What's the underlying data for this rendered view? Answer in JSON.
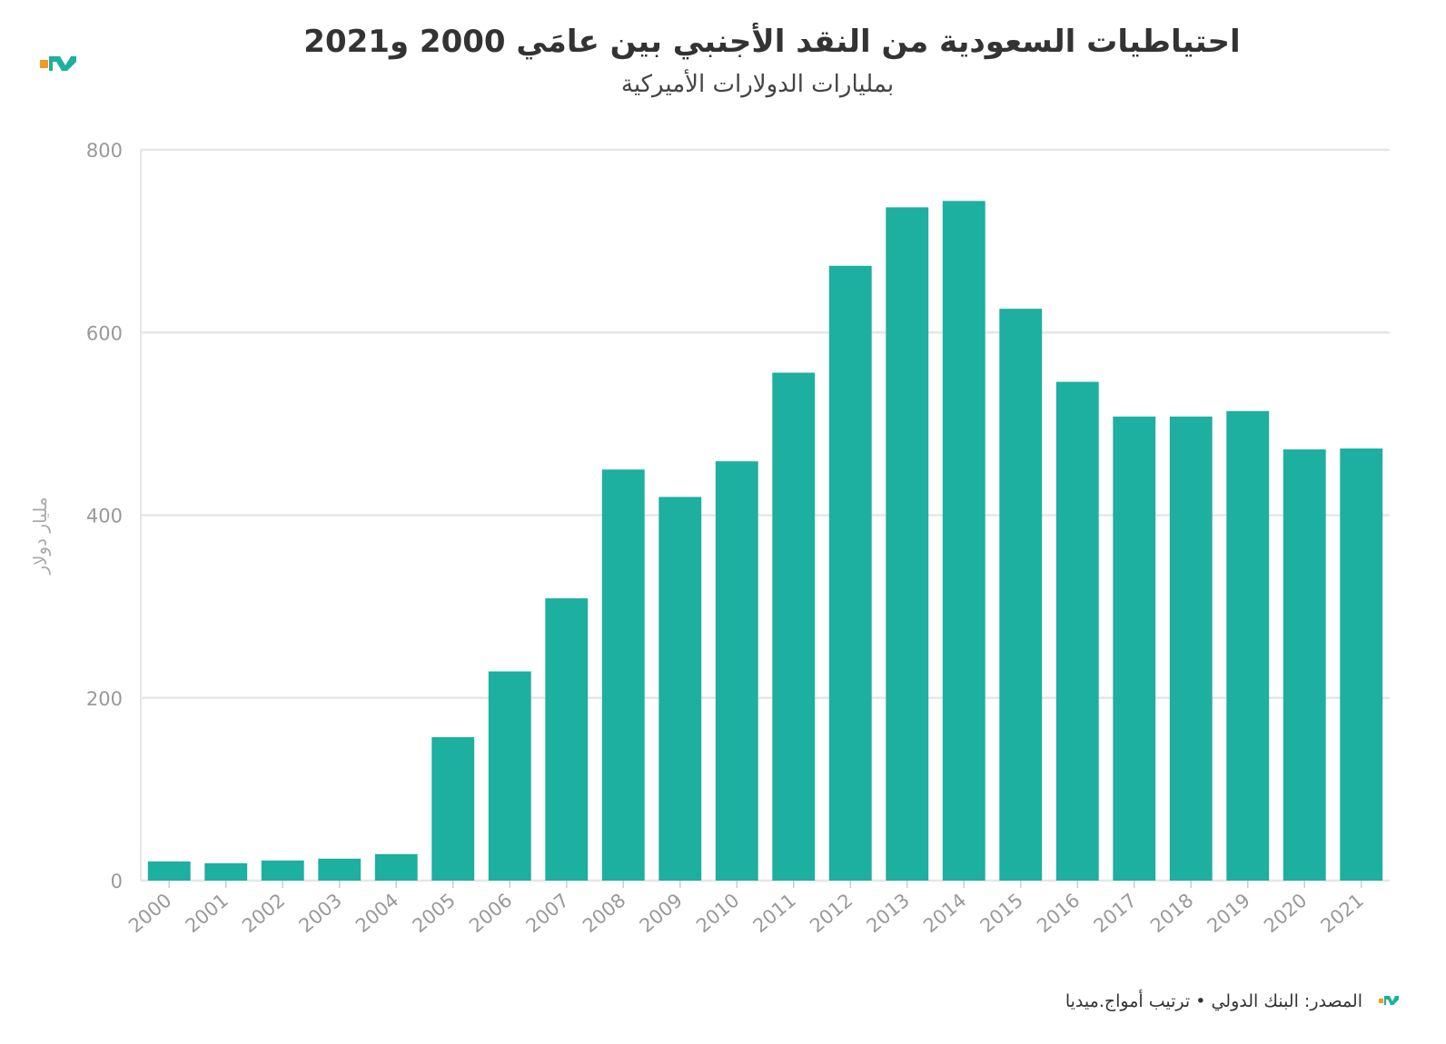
{
  "title": "احتياطيات السعودية من النقد الأجنبي بين عامَي 2000 و2021",
  "subtitle": "بمليارات الدولارات الأميركية",
  "footer": {
    "source": "المصدر: البنك الدولي • ترتيب أمواج.ميديا"
  },
  "colors": {
    "bar": "#1daf9f",
    "logo_orange": "#f39a1f",
    "logo_teal": "#1daf9f",
    "grid": "#e6e6e6",
    "tick_text": "#999999"
  },
  "chart_data": {
    "type": "bar",
    "title": "احتياطيات السعودية من النقد الأجنبي بين عامَي 2000 و2021",
    "subtitle": "بمليارات الدولارات الأميركية",
    "xlabel": "",
    "ylabel": "مليار دولار",
    "ylim": [
      0,
      800
    ],
    "yticks": [
      0,
      200,
      400,
      600,
      800
    ],
    "grid": true,
    "categories": [
      "2000",
      "2001",
      "2002",
      "2003",
      "2004",
      "2005",
      "2006",
      "2007",
      "2008",
      "2009",
      "2010",
      "2011",
      "2012",
      "2013",
      "2014",
      "2015",
      "2016",
      "2017",
      "2018",
      "2019",
      "2020",
      "2021"
    ],
    "values": [
      21,
      19,
      22,
      24,
      29,
      157,
      229,
      309,
      450,
      420,
      459,
      556,
      673,
      737,
      744,
      626,
      546,
      508,
      508,
      514,
      472,
      473
    ]
  }
}
